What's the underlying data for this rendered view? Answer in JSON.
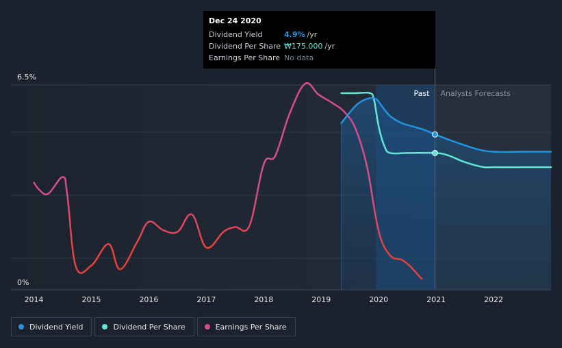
{
  "tooltip": {
    "date": "Dec 24 2020",
    "rows": [
      {
        "label": "Dividend Yield",
        "value": "4.9%",
        "unit": "/yr"
      },
      {
        "label": "Dividend Per Share",
        "value": "₩175.000",
        "unit": "/yr"
      },
      {
        "label": "Earnings Per Share",
        "value": "No data",
        "unit": ""
      }
    ]
  },
  "legend": [
    {
      "label": "Dividend Yield",
      "color": "#2394df"
    },
    {
      "label": "Dividend Per Share",
      "color": "#63e6d6"
    },
    {
      "label": "Earnings Per Share",
      "color": "#d64d8c"
    }
  ],
  "chart_data": {
    "type": "line",
    "title": "",
    "xlabel": "",
    "ylabel": "",
    "xlim": [
      2013.6,
      2023.0
    ],
    "ylim": [
      0,
      6.5
    ],
    "y_tick_labels": [
      "6.5%",
      "0%"
    ],
    "x_ticks": [
      2014,
      2015,
      2016,
      2017,
      2018,
      2019,
      2020,
      2021,
      2022
    ],
    "x_tick_labels": [
      "2014",
      "2015",
      "2016",
      "2017",
      "2018",
      "2019",
      "2020",
      "2021",
      "2022"
    ],
    "divider_x": 2020.98,
    "past_label": "Past",
    "forecast_label": "Analysts Forecasts",
    "colors": {
      "yield": "#2394df",
      "dps": "#63e6d6",
      "eps_high": "#d64d8c",
      "eps_low": "#e8413a"
    },
    "series": [
      {
        "name": "Dividend Yield",
        "key": "yield",
        "x": [
          2019.35,
          2019.6,
          2019.8,
          2019.95,
          2020.05,
          2020.2,
          2020.4,
          2020.6,
          2020.8,
          2020.98,
          2021.3,
          2021.7,
          2022.0,
          2022.5,
          2023.0
        ],
        "y": [
          5.29,
          5.84,
          6.06,
          6.06,
          5.84,
          5.51,
          5.29,
          5.18,
          5.07,
          4.93,
          4.71,
          4.47,
          4.38,
          4.38,
          4.38
        ]
      },
      {
        "name": "Dividend Per Share",
        "key": "dps",
        "x": [
          2019.35,
          2019.6,
          2019.85,
          2019.92,
          2020.0,
          2020.1,
          2020.2,
          2020.5,
          2020.98,
          2021.2,
          2021.5,
          2021.8,
          2022.0,
          2022.5,
          2023.0
        ],
        "y": [
          6.24,
          6.24,
          6.24,
          6.02,
          5.18,
          4.56,
          4.34,
          4.34,
          4.34,
          4.27,
          4.05,
          3.9,
          3.89,
          3.89,
          3.89
        ]
      },
      {
        "name": "Earnings Per Share",
        "key": "eps",
        "x": [
          2014.0,
          2014.1,
          2014.25,
          2014.5,
          2014.58,
          2014.73,
          2015.0,
          2015.3,
          2015.5,
          2015.8,
          2016.0,
          2016.25,
          2016.5,
          2016.75,
          2017.0,
          2017.3,
          2017.5,
          2017.75,
          2018.0,
          2018.2,
          2018.45,
          2018.72,
          2018.95,
          2019.2,
          2019.4,
          2019.6,
          2019.8,
          2020.0,
          2020.2,
          2020.4,
          2020.55,
          2020.75
        ],
        "y": [
          3.4,
          3.16,
          3.05,
          3.58,
          3.02,
          0.73,
          0.77,
          1.45,
          0.65,
          1.53,
          2.16,
          1.89,
          1.84,
          2.39,
          1.34,
          1.84,
          1.99,
          2.03,
          3.99,
          4.25,
          5.59,
          6.54,
          6.2,
          5.92,
          5.65,
          5.1,
          3.88,
          1.86,
          1.09,
          0.95,
          0.74,
          0.34
        ]
      }
    ],
    "markers": [
      {
        "series": "yield",
        "x": 2020.98,
        "y": 4.93
      },
      {
        "series": "dps",
        "x": 2020.98,
        "y": 4.34
      }
    ]
  }
}
